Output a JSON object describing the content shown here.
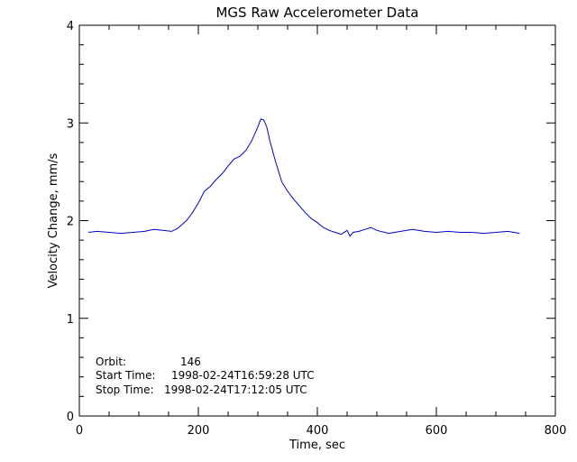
{
  "chart_data": {
    "type": "line",
    "title": "MGS Raw Accelerometer Data",
    "xlabel": "Time, sec",
    "ylabel": "Velocity Change, mm/s",
    "xlim": [
      0,
      800
    ],
    "ylim": [
      0,
      4
    ],
    "xticks": [
      0,
      200,
      400,
      600,
      800
    ],
    "yticks": [
      0,
      1,
      2,
      3,
      4
    ],
    "line_color": "#0000cc",
    "grid": false,
    "annotations": [
      {
        "label": "Orbit:",
        "value": "146"
      },
      {
        "label": "Start Time:",
        "value": "1998-02-24T16:59:28 UTC"
      },
      {
        "label": "Stop Time:",
        "value": "1998-02-24T17:12:05 UTC"
      }
    ],
    "series": [
      {
        "x": [
          15,
          30,
          50,
          70,
          90,
          110,
          125,
          140,
          155,
          165,
          180,
          190,
          200,
          210,
          220,
          230,
          240,
          250,
          260,
          270,
          280,
          290,
          300,
          305,
          310,
          315,
          320,
          330,
          340,
          350,
          360,
          370,
          380,
          390,
          400,
          410,
          420,
          430,
          440,
          450,
          455,
          460,
          470,
          480,
          490,
          500,
          520,
          540,
          560,
          580,
          600,
          620,
          640,
          660,
          680,
          700,
          720,
          740
        ],
        "y": [
          1.88,
          1.89,
          1.88,
          1.87,
          1.88,
          1.89,
          1.91,
          1.9,
          1.89,
          1.92,
          2.0,
          2.08,
          2.18,
          2.3,
          2.35,
          2.42,
          2.48,
          2.56,
          2.63,
          2.66,
          2.72,
          2.82,
          2.96,
          3.04,
          3.03,
          2.96,
          2.82,
          2.6,
          2.4,
          2.3,
          2.22,
          2.15,
          2.08,
          2.02,
          1.98,
          1.93,
          1.9,
          1.88,
          1.86,
          1.9,
          1.84,
          1.88,
          1.89,
          1.91,
          1.93,
          1.9,
          1.87,
          1.89,
          1.91,
          1.89,
          1.88,
          1.89,
          1.88,
          1.88,
          1.87,
          1.88,
          1.89,
          1.87
        ]
      }
    ]
  }
}
